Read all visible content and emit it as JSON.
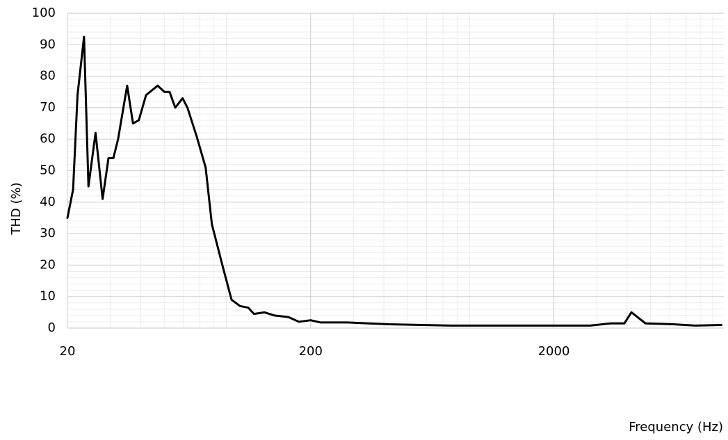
{
  "chart_data": {
    "type": "line",
    "x_label": "Frequency (Hz)",
    "y_label": "THD (%)",
    "xscale": "log",
    "grid": true,
    "xlim": [
      20,
      10000
    ],
    "ylim": [
      0,
      100
    ],
    "xticks": [
      20,
      200,
      2000
    ],
    "yticks": [
      0,
      10,
      20,
      30,
      40,
      50,
      60,
      70,
      80,
      90,
      100
    ],
    "minor_xticks": [
      30,
      40,
      50,
      60,
      70,
      80,
      90,
      300,
      400,
      500,
      600,
      700,
      800,
      900,
      3000,
      4000,
      5000,
      6000,
      7000,
      8000,
      9000
    ],
    "minor_yticks": [
      2,
      4,
      6,
      8,
      12,
      14,
      16,
      18,
      22,
      24,
      26,
      28,
      32,
      34,
      36,
      38,
      42,
      44,
      46,
      48,
      52,
      54,
      56,
      58,
      62,
      64,
      66,
      68,
      72,
      74,
      76,
      78,
      82,
      84,
      86,
      88,
      92,
      94,
      96,
      98
    ],
    "series": [
      {
        "color": "#000000",
        "x": [
          20,
          21.1,
          22.0,
          23.4,
          24.4,
          26.1,
          27.9,
          29.5,
          30.9,
          32.3,
          35.2,
          37.2,
          39.3,
          42.1,
          47.0,
          50.1,
          52.6,
          55.5,
          59.5,
          62.3,
          67.9,
          74.0,
          78.5,
          86.7,
          94.6,
          102.5,
          110.7,
          117,
          129,
          142,
          162,
          179,
          200,
          219,
          282,
          345,
          420,
          757,
          1460,
          2820,
          3430,
          3900,
          4170,
          4760,
          6190,
          7620,
          9770
        ],
        "values": [
          35,
          44,
          74,
          92.5,
          45,
          62,
          41,
          54,
          54,
          60,
          77,
          65,
          66,
          74,
          77,
          75,
          75,
          70,
          73,
          70,
          61,
          51,
          33,
          20,
          9,
          7,
          6.5,
          4.5,
          5,
          4,
          3.5,
          2,
          2.5,
          1.8,
          1.8,
          1.5,
          1.2,
          0.8,
          0.8,
          0.8,
          1.5,
          1.5,
          5,
          1.5,
          1.2,
          0.8,
          1
        ]
      }
    ]
  }
}
